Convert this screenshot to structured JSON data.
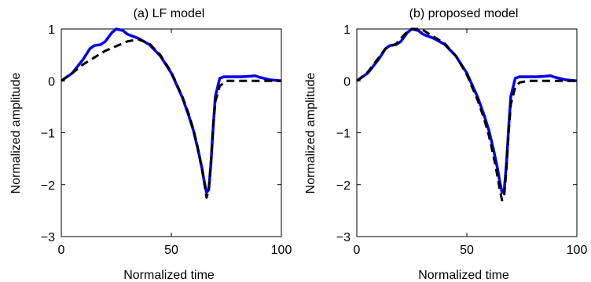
{
  "chart_data": [
    {
      "type": "line",
      "title": "(a) LF model",
      "xlabel": "Normalized time",
      "ylabel": "Normalized amplitude",
      "xlim": [
        0,
        100
      ],
      "ylim": [
        -3,
        1
      ],
      "xticks": [
        0,
        50,
        100
      ],
      "yticks": [
        -3,
        -2,
        -1,
        0,
        1
      ],
      "grid": false,
      "series": [
        {
          "color": "#0000ee",
          "style": "solid",
          "x": [
            0,
            5,
            10,
            13,
            15,
            18,
            20,
            23,
            25,
            28,
            30,
            35,
            40,
            45,
            50,
            55,
            58,
            60,
            62,
            64,
            65,
            66,
            67,
            68,
            69,
            70,
            72,
            74,
            78,
            82,
            86,
            88,
            90,
            95,
            100
          ],
          "y": [
            0,
            0.15,
            0.42,
            0.62,
            0.68,
            0.7,
            0.76,
            0.93,
            1.0,
            0.97,
            0.9,
            0.82,
            0.7,
            0.48,
            0.15,
            -0.32,
            -0.68,
            -0.95,
            -1.3,
            -1.7,
            -1.95,
            -2.15,
            -2.1,
            -1.6,
            -0.9,
            -0.3,
            0.05,
            0.08,
            0.08,
            0.08,
            0.09,
            0.1,
            0.07,
            0.02,
            0.0
          ]
        },
        {
          "color": "#000000",
          "style": "dashed",
          "x": [
            0,
            5,
            10,
            15,
            20,
            25,
            30,
            35,
            40,
            45,
            50,
            55,
            58,
            60,
            62,
            64,
            65,
            66,
            67,
            68,
            69,
            70,
            72,
            75,
            80,
            90,
            100
          ],
          "y": [
            0,
            0.15,
            0.32,
            0.45,
            0.58,
            0.67,
            0.76,
            0.8,
            0.72,
            0.5,
            0.17,
            -0.3,
            -0.65,
            -0.93,
            -1.28,
            -1.72,
            -1.97,
            -2.25,
            -2.1,
            -1.55,
            -0.9,
            -0.4,
            -0.1,
            0.0,
            0.0,
            0.0,
            0.0
          ]
        }
      ]
    },
    {
      "type": "line",
      "title": "(b) proposed model",
      "xlabel": "Normalized time",
      "ylabel": "Normalized amplitude",
      "xlim": [
        0,
        100
      ],
      "ylim": [
        -3,
        1
      ],
      "xticks": [
        0,
        50,
        100
      ],
      "yticks": [
        -3,
        -2,
        -1,
        0,
        1
      ],
      "grid": false,
      "series": [
        {
          "color": "#0000ee",
          "style": "solid",
          "x": [
            0,
            5,
            10,
            13,
            15,
            18,
            20,
            23,
            25,
            28,
            30,
            35,
            40,
            45,
            50,
            55,
            58,
            60,
            62,
            64,
            65,
            66,
            67,
            68,
            69,
            70,
            72,
            74,
            78,
            82,
            86,
            88,
            90,
            95,
            100
          ],
          "y": [
            0,
            0.15,
            0.42,
            0.62,
            0.68,
            0.7,
            0.76,
            0.93,
            1.0,
            0.97,
            0.9,
            0.82,
            0.7,
            0.48,
            0.15,
            -0.32,
            -0.68,
            -0.95,
            -1.3,
            -1.7,
            -1.95,
            -2.15,
            -2.1,
            -1.6,
            -0.9,
            -0.3,
            0.05,
            0.08,
            0.08,
            0.08,
            0.09,
            0.1,
            0.07,
            0.02,
            0.0
          ]
        },
        {
          "color": "#000000",
          "style": "dashed",
          "x": [
            0,
            5,
            10,
            13,
            15,
            18,
            20,
            23,
            25,
            28,
            30,
            35,
            40,
            45,
            50,
            55,
            58,
            60,
            62,
            64,
            65,
            66,
            67,
            68,
            69,
            70,
            72,
            74,
            78,
            85,
            100
          ],
          "y": [
            0,
            0.17,
            0.45,
            0.62,
            0.66,
            0.72,
            0.82,
            0.95,
            1.0,
            1.0,
            0.98,
            0.85,
            0.72,
            0.48,
            0.12,
            -0.38,
            -0.75,
            -1.05,
            -1.42,
            -1.85,
            -2.1,
            -2.3,
            -2.2,
            -1.7,
            -1.0,
            -0.45,
            -0.12,
            -0.03,
            0.0,
            0.0,
            0.0
          ]
        }
      ]
    }
  ]
}
